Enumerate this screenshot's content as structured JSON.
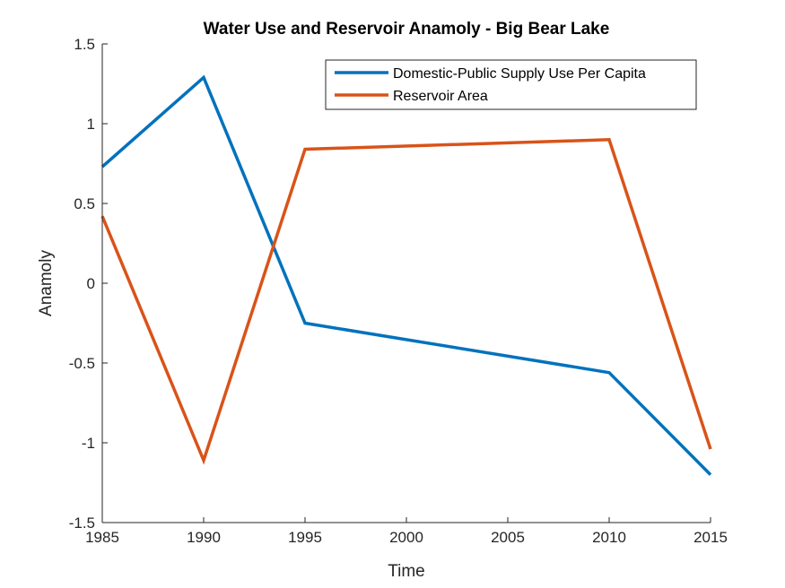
{
  "chart_data": {
    "type": "line",
    "title": "Water Use and Reservoir Anamoly - Big Bear Lake",
    "xlabel": "Time",
    "ylabel": "Anamoly",
    "x": [
      1985,
      1990,
      1995,
      2010,
      2015
    ],
    "xlim": [
      1985,
      2015
    ],
    "ylim": [
      -1.5,
      1.5
    ],
    "xticks": [
      1985,
      1990,
      1995,
      2000,
      2005,
      2010,
      2015
    ],
    "yticks": [
      -1.5,
      -1,
      -0.5,
      0,
      0.5,
      1,
      1.5
    ],
    "xtick_labels": [
      "1985",
      "1990",
      "1995",
      "2000",
      "2005",
      "2010",
      "2015"
    ],
    "ytick_labels": [
      "-1.5",
      "-1",
      "-0.5",
      "0",
      "0.5",
      "1",
      "1.5"
    ],
    "grid": false,
    "legend_position": "top-right",
    "series": [
      {
        "name": "Domestic-Public Supply Use Per Capita",
        "color": "#0072BD",
        "values": [
          0.73,
          1.29,
          -0.25,
          -0.56,
          -1.2
        ]
      },
      {
        "name": "Reservoir Area",
        "color": "#D95319",
        "values": [
          0.42,
          -1.11,
          0.84,
          0.9,
          -1.04
        ]
      }
    ]
  }
}
